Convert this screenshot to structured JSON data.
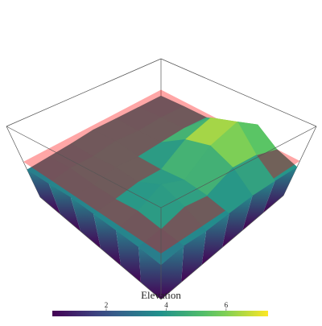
{
  "chart_data": {
    "type": "surface",
    "colorbar_title": "Elevation",
    "colorscale": "viridis",
    "clim": [
      0.2,
      7.4
    ],
    "colorbar_ticks": [
      2,
      4,
      6
    ],
    "zlim": [
      0,
      8
    ],
    "z": [
      [
        3.2,
        3.4,
        3.5,
        4.5,
        5.5,
        4.0,
        3.3
      ],
      [
        3.3,
        3.6,
        3.8,
        6.5,
        7.4,
        5.0,
        3.5
      ],
      [
        3.4,
        3.5,
        3.7,
        5.5,
        6.2,
        5.2,
        3.6
      ],
      [
        3.5,
        3.8,
        3.6,
        3.7,
        4.0,
        3.8,
        3.4
      ],
      [
        3.3,
        3.5,
        3.9,
        3.8,
        5.0,
        4.2,
        3.2
      ],
      [
        3.2,
        3.6,
        3.4,
        3.5,
        3.8,
        3.5,
        3.3
      ],
      [
        3.1,
        3.3,
        3.5,
        3.4,
        3.3,
        3.2,
        3.0
      ]
    ],
    "plane_z": 4,
    "plane_color": "#ff0000",
    "plane_opacity": 0.35
  }
}
